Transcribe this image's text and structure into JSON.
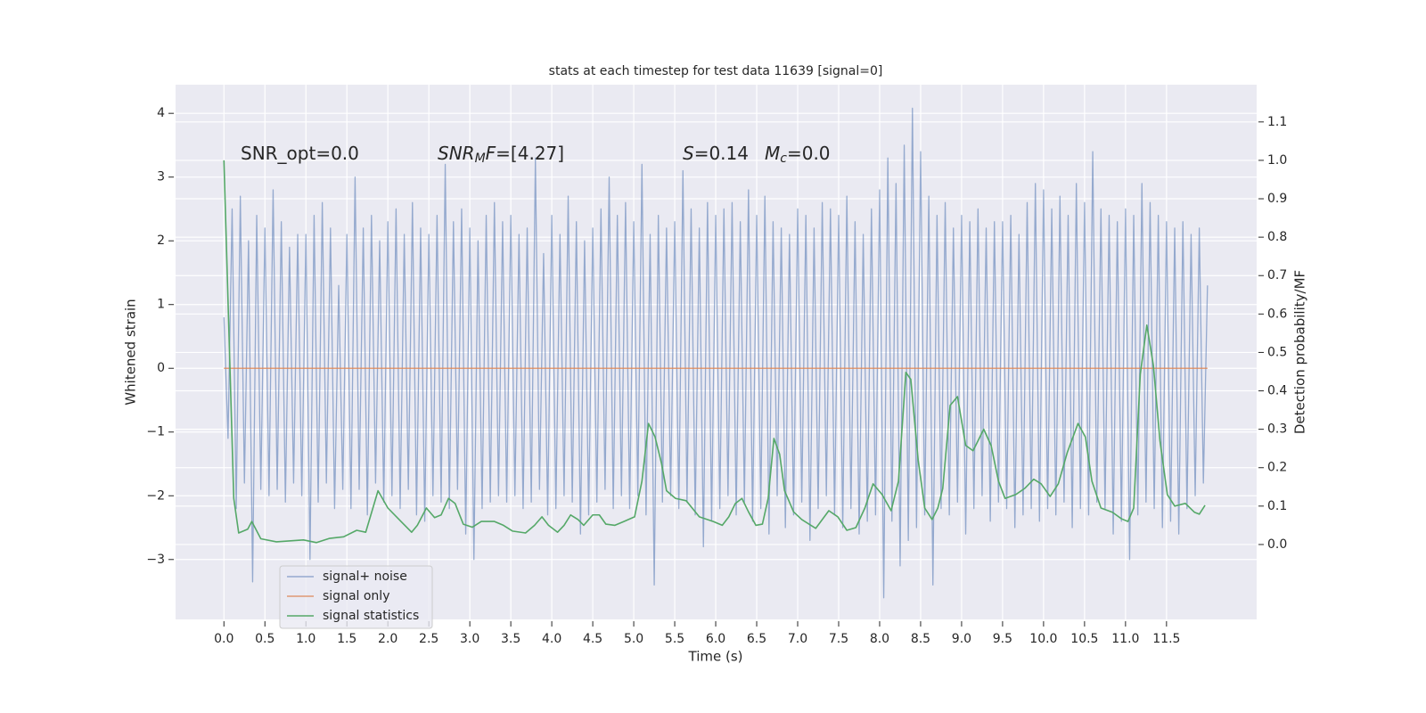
{
  "chart_data": {
    "type": "line",
    "title": "stats at each timestep for test data 11639 [signal=0]",
    "xlabel": "Time (s)",
    "ylabel": "Whitened strain",
    "y2label": "Detection probability/MF",
    "xlim": [
      -0.59,
      12.6
    ],
    "ylim": [
      -3.94,
      4.45
    ],
    "y2lim": [
      -0.195,
      1.197
    ],
    "xticks": [
      {
        "value": 0,
        "label": "0.0"
      },
      0.5,
      {
        "value": 1,
        "label": "1.0"
      },
      1.5,
      {
        "value": 2,
        "label": "2.0"
      },
      2.5,
      {
        "value": 3,
        "label": "3.0"
      },
      3.5,
      {
        "value": 4,
        "label": "4.0"
      },
      4.5,
      {
        "value": 5,
        "label": "5.0"
      },
      5.5,
      {
        "value": 6,
        "label": "6.0"
      },
      6.5,
      {
        "value": 7,
        "label": "7.0"
      },
      7.5,
      {
        "value": 8,
        "label": "8.0"
      },
      8.5,
      {
        "value": 9,
        "label": "9.0"
      },
      9.5,
      {
        "value": 10,
        "label": "10.0"
      },
      10.5,
      {
        "value": 11,
        "label": "11.0"
      },
      11.5
    ],
    "yticks": [
      {
        "value": -3,
        "label": "−3"
      },
      {
        "value": -2,
        "label": "−2"
      },
      {
        "value": -1,
        "label": "−1"
      },
      0,
      1,
      2,
      3,
      4
    ],
    "y2ticks": [
      {
        "value": 0,
        "label": "0.0"
      },
      0.1,
      0.2,
      0.3,
      0.4,
      0.5,
      0.6,
      0.7,
      0.8,
      0.9,
      {
        "value": 1,
        "label": "1.0"
      },
      1.1
    ],
    "grid": true,
    "legend": "lower left",
    "annotations": [
      [
        {
          "text": "SNR_opt=0.0"
        }
      ],
      [
        {
          "text": "SNR",
          "italic": true
        },
        {
          "text": "M",
          "italic": true,
          "sub": true
        },
        {
          "text": "F",
          "italic": true
        },
        {
          "text": "=[4.27]"
        }
      ],
      [
        {
          "text": "S",
          "italic": true
        },
        {
          "text": "=0.14"
        }
      ],
      [
        {
          "text": "M",
          "italic": true
        },
        {
          "text": "c",
          "italic": true,
          "sub": true
        },
        {
          "text": "=0.0"
        }
      ]
    ],
    "series": [
      {
        "name": "signal+ noise",
        "color": "#4c72b0",
        "alpha": 0.55,
        "x": [
          0,
          0.05,
          0.1,
          0.15,
          0.2,
          0.25,
          0.3,
          0.35,
          0.4,
          0.45,
          0.5,
          0.55,
          0.6,
          0.65,
          0.7,
          0.75,
          0.8,
          0.85,
          0.9,
          0.95,
          1,
          1.05,
          1.1,
          1.15,
          1.2,
          1.25,
          1.3,
          1.35,
          1.4,
          1.45,
          1.5,
          1.55,
          1.6,
          1.65,
          1.7,
          1.75,
          1.8,
          1.85,
          1.9,
          1.95,
          2,
          2.05,
          2.1,
          2.15,
          2.2,
          2.25,
          2.3,
          2.35,
          2.4,
          2.45,
          2.5,
          2.55,
          2.6,
          2.65,
          2.7,
          2.75,
          2.8,
          2.85,
          2.9,
          2.95,
          3,
          3.05,
          3.1,
          3.15,
          3.2,
          3.25,
          3.3,
          3.35,
          3.4,
          3.45,
          3.5,
          3.55,
          3.6,
          3.65,
          3.7,
          3.75,
          3.8,
          3.85,
          3.9,
          3.95,
          4,
          4.05,
          4.1,
          4.15,
          4.2,
          4.25,
          4.3,
          4.35,
          4.4,
          4.45,
          4.5,
          4.55,
          4.6,
          4.65,
          4.7,
          4.75,
          4.8,
          4.85,
          4.9,
          4.95,
          5,
          5.05,
          5.1,
          5.15,
          5.2,
          5.25,
          5.3,
          5.35,
          5.4,
          5.45,
          5.5,
          5.55,
          5.6,
          5.65,
          5.7,
          5.75,
          5.8,
          5.85,
          5.9,
          5.95,
          6,
          6.05,
          6.1,
          6.15,
          6.2,
          6.25,
          6.3,
          6.35,
          6.4,
          6.45,
          6.5,
          6.55,
          6.6,
          6.65,
          6.7,
          6.75,
          6.8,
          6.85,
          6.9,
          6.95,
          7,
          7.05,
          7.1,
          7.15,
          7.2,
          7.25,
          7.3,
          7.35,
          7.4,
          7.45,
          7.5,
          7.55,
          7.6,
          7.65,
          7.7,
          7.75,
          7.8,
          7.85,
          7.9,
          7.95,
          8,
          8.05,
          8.1,
          8.15,
          8.2,
          8.25,
          8.3,
          8.35,
          8.4,
          8.45,
          8.5,
          8.55,
          8.6,
          8.65,
          8.7,
          8.75,
          8.8,
          8.85,
          8.9,
          8.95,
          9,
          9.05,
          9.1,
          9.15,
          9.2,
          9.25,
          9.3,
          9.35,
          9.4,
          9.45,
          9.5,
          9.55,
          9.6,
          9.65,
          9.7,
          9.75,
          9.8,
          9.85,
          9.9,
          9.95,
          10,
          10.05,
          10.1,
          10.15,
          10.2,
          10.25,
          10.3,
          10.35,
          10.4,
          10.45,
          10.5,
          10.55,
          10.6,
          10.65,
          10.7,
          10.75,
          10.8,
          10.85,
          10.9,
          10.95,
          11,
          11.05,
          11.1,
          11.15,
          11.2,
          11.25,
          11.3,
          11.35,
          11.4,
          11.45,
          11.5,
          11.55,
          11.6,
          11.65,
          11.7,
          11.75,
          11.8,
          11.85,
          11.9,
          11.95,
          12
        ],
        "values": [
          0.8,
          -1.1,
          2.5,
          -2.2,
          2.7,
          -1.8,
          2.0,
          -3.35,
          2.4,
          -1.9,
          2.2,
          -2.0,
          2.8,
          -1.9,
          2.3,
          -2.1,
          1.9,
          -1.8,
          2.1,
          -2.0,
          2.1,
          -3.0,
          2.4,
          -2.1,
          2.6,
          -1.8,
          2.2,
          -2.2,
          1.3,
          -1.9,
          2.1,
          -2.2,
          3.0,
          -1.9,
          2.2,
          -2.3,
          2.4,
          -1.8,
          2.0,
          -2.1,
          2.3,
          -2.0,
          2.5,
          -2.2,
          2.1,
          -1.9,
          2.6,
          -2.3,
          2.2,
          -2.4,
          2.1,
          -2.0,
          2.4,
          -2.1,
          3.2,
          -2.2,
          2.3,
          -1.9,
          2.5,
          -2.6,
          2.2,
          -3.0,
          2.0,
          -2.2,
          2.4,
          -2.1,
          2.6,
          -2.0,
          2.3,
          -2.1,
          2.4,
          -2.0,
          2.1,
          -2.2,
          2.2,
          -2.1,
          3.3,
          -1.9,
          1.8,
          -2.3,
          2.4,
          -2.2,
          2.1,
          -2.0,
          2.7,
          -2.1,
          2.3,
          -2.6,
          2.0,
          -2.3,
          2.2,
          -2.1,
          2.5,
          -1.9,
          3.0,
          -2.2,
          2.4,
          -2.0,
          2.6,
          -2.2,
          2.3,
          -2.0,
          3.2,
          -2.3,
          2.1,
          -3.4,
          2.4,
          -2.1,
          2.2,
          -2.0,
          2.3,
          -2.2,
          3.1,
          -2.1,
          2.5,
          -2.3,
          2.2,
          -2.8,
          2.6,
          -2.4,
          2.4,
          -2.2,
          2.5,
          -2.0,
          2.6,
          -2.3,
          2.3,
          -2.1,
          2.8,
          -2.4,
          2.4,
          -2.2,
          2.7,
          -2.6,
          2.3,
          -2.0,
          2.2,
          -2.5,
          2.1,
          -2.3,
          2.5,
          -2.1,
          2.4,
          -2.7,
          2.2,
          -2.2,
          2.6,
          -2.0,
          2.5,
          -2.3,
          2.4,
          -2.5,
          2.7,
          -2.2,
          2.3,
          -2.6,
          2.1,
          -2.4,
          2.5,
          -2.3,
          2.8,
          -3.6,
          3.3,
          -2.4,
          2.9,
          -3.1,
          3.5,
          -2.7,
          4.08,
          -2.5,
          3.4,
          -2.3,
          2.7,
          -3.4,
          2.4,
          -2.2,
          2.6,
          -2.3,
          2.2,
          -2.1,
          2.4,
          -2.6,
          2.3,
          -2.2,
          2.5,
          -2.0,
          2.2,
          -2.4,
          2.3,
          -2.1,
          2.3,
          -2.2,
          2.4,
          -2.5,
          2.1,
          -2.3,
          2.6,
          -2.2,
          2.9,
          -2.4,
          2.8,
          -2.2,
          2.5,
          -2.3,
          2.7,
          -2.1,
          2.4,
          -2.5,
          2.9,
          -2.2,
          2.6,
          -2.3,
          3.4,
          -2.1,
          2.5,
          -2.2,
          2.4,
          -2.6,
          2.3,
          -2.4,
          2.5,
          -3.0,
          2.4,
          -2.3,
          2.9,
          -2.1,
          2.6,
          -2.2,
          2.4,
          -2.5,
          2.3,
          -2.4,
          2.2,
          -2.6,
          2.3,
          -2.2,
          2.1,
          -2.0,
          2.2,
          -1.8,
          1.3
        ]
      },
      {
        "name": "signal only",
        "color": "#dd8452",
        "alpha": 0.8,
        "x": [
          0,
          12
        ],
        "values": [
          0,
          0
        ]
      },
      {
        "name": "signal statistics",
        "color": "#55a868",
        "alpha": 1,
        "axis": "y2",
        "x": [
          0,
          0.12,
          0.18,
          0.29,
          0.34,
          0.45,
          0.64,
          0.97,
          1.13,
          1.29,
          1.46,
          1.62,
          1.73,
          1.88,
          2.0,
          2.16,
          2.29,
          2.36,
          2.47,
          2.57,
          2.65,
          2.74,
          2.82,
          2.92,
          3.03,
          3.14,
          3.3,
          3.41,
          3.52,
          3.68,
          3.79,
          3.88,
          3.96,
          4.07,
          4.15,
          4.23,
          4.32,
          4.39,
          4.5,
          4.58,
          4.66,
          4.77,
          4.88,
          5.01,
          5.1,
          5.18,
          5.26,
          5.34,
          5.4,
          5.51,
          5.64,
          5.8,
          5.97,
          6.08,
          6.16,
          6.24,
          6.32,
          6.4,
          6.49,
          6.57,
          6.64,
          6.71,
          6.78,
          6.84,
          6.95,
          7.05,
          7.22,
          7.38,
          7.49,
          7.6,
          7.71,
          7.82,
          7.92,
          8.03,
          8.14,
          8.23,
          8.32,
          8.38,
          8.47,
          8.55,
          8.64,
          8.71,
          8.77,
          8.86,
          8.95,
          9.05,
          9.14,
          9.27,
          9.36,
          9.45,
          9.53,
          9.66,
          9.77,
          9.88,
          9.97,
          10.08,
          10.18,
          10.29,
          10.42,
          10.51,
          10.59,
          10.7,
          10.84,
          10.95,
          11.03,
          11.1,
          11.18,
          11.26,
          11.34,
          11.42,
          11.51,
          11.6,
          11.73,
          11.84,
          11.9,
          11.97
        ],
        "values": [
          1.0,
          0.12,
          0.03,
          0.04,
          0.06,
          0.015,
          0.007,
          0.012,
          0.005,
          0.016,
          0.02,
          0.037,
          0.032,
          0.14,
          0.095,
          0.06,
          0.032,
          0.05,
          0.095,
          0.07,
          0.077,
          0.12,
          0.107,
          0.053,
          0.045,
          0.06,
          0.06,
          0.05,
          0.035,
          0.03,
          0.05,
          0.072,
          0.05,
          0.032,
          0.05,
          0.077,
          0.065,
          0.05,
          0.077,
          0.077,
          0.053,
          0.05,
          0.06,
          0.072,
          0.165,
          0.315,
          0.28,
          0.21,
          0.14,
          0.12,
          0.114,
          0.072,
          0.06,
          0.05,
          0.072,
          0.107,
          0.12,
          0.085,
          0.05,
          0.053,
          0.12,
          0.276,
          0.235,
          0.14,
          0.085,
          0.065,
          0.042,
          0.088,
          0.072,
          0.037,
          0.044,
          0.095,
          0.158,
          0.13,
          0.088,
          0.165,
          0.448,
          0.43,
          0.22,
          0.095,
          0.065,
          0.095,
          0.146,
          0.362,
          0.385,
          0.258,
          0.244,
          0.3,
          0.258,
          0.165,
          0.12,
          0.13,
          0.146,
          0.17,
          0.158,
          0.125,
          0.158,
          0.24,
          0.315,
          0.28,
          0.165,
          0.095,
          0.084,
          0.067,
          0.06,
          0.095,
          0.443,
          0.571,
          0.466,
          0.27,
          0.13,
          0.1,
          0.107,
          0.084,
          0.079,
          0.102
        ]
      }
    ]
  }
}
